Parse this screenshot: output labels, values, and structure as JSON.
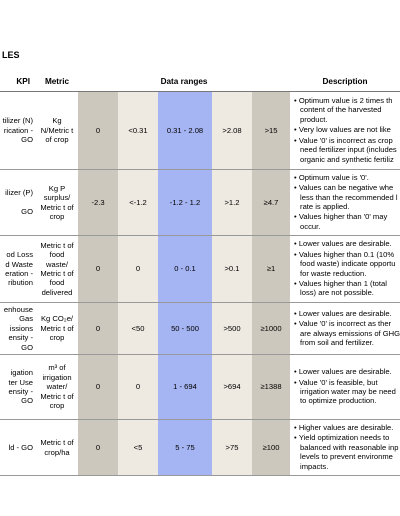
{
  "header": {
    "title": "LES"
  },
  "table": {
    "columns": {
      "kpi": "KPI",
      "metric": "Metric",
      "ranges": "Data ranges",
      "description": "Description"
    },
    "rows": [
      {
        "kpi": [
          "tilizer (N)",
          "rication -",
          "GO"
        ],
        "metric": "Kg N/Metric t of crop",
        "ranges": [
          "0",
          "<0.31",
          "0.31 - 2.08",
          ">2.08",
          ">15"
        ],
        "description": [
          [
            "Optimum value is 2 times th",
            "content of the harvested",
            "product."
          ],
          [
            "Very low values are not like"
          ],
          [
            "Value '0' is incorrect as crop",
            "need fertilizer input (includes",
            "organic and synthetic fertiliz"
          ]
        ]
      },
      {
        "kpi": [
          "ilizer (P)",
          "",
          "GO"
        ],
        "metric": "Kg P surplus/ Metric t of crop",
        "ranges": [
          "-2.3",
          "<-1.2",
          "-1.2 - 1.2",
          ">1.2",
          "≥4.7"
        ],
        "description": [
          [
            "Optimum value is '0'."
          ],
          [
            "Values can be negative whe",
            "less than the recommended l",
            "rate is applied."
          ],
          [
            "Values higher than '0' may",
            "occur."
          ]
        ]
      },
      {
        "kpi": [
          "od Loss",
          "d Waste",
          "eration -",
          "ribution"
        ],
        "metric": "Metric t of food waste/ Metric t of food delivered",
        "ranges": [
          "0",
          "0",
          "0 - 0.1",
          ">0.1",
          "≥1"
        ],
        "description": [
          [
            "Lower values are desirable."
          ],
          [
            "Values higher than 0.1 (10%",
            "food waste) indicate opportu",
            "for waste reduction."
          ],
          [
            "Values higher than 1 (total",
            "loss) are not possible."
          ]
        ]
      },
      {
        "kpi": [
          "enhouse",
          "Gas",
          "issions",
          "ensity -",
          "GO"
        ],
        "metric": "Kg CO₂e/ Metric t of crop",
        "ranges": [
          "0",
          "<50",
          "50 - 500",
          ">500",
          "≥1000"
        ],
        "description": [
          [
            "Lower values are desirable."
          ],
          [
            "Value '0' is incorrect as ther",
            "are always emissions of GHG",
            "from soil and fertilizer."
          ]
        ]
      },
      {
        "kpi": [
          "igation",
          "ter Use",
          "ensity -",
          "GO"
        ],
        "metric": "m³ of irrigation water/ Metric t of crop",
        "ranges": [
          "0",
          "0",
          "1 - 694",
          ">694",
          "≥1388"
        ],
        "description": [
          [
            "Lower values are desirable."
          ],
          [
            "Value '0' is feasible, but",
            "irrigation water may be need",
            "to optimize production."
          ]
        ]
      },
      {
        "kpi": [
          "ld - GO"
        ],
        "metric": "Metric t of crop/ha",
        "ranges": [
          "0",
          "<5",
          "5 - 75",
          ">75",
          "≥100"
        ],
        "description": [
          [
            "Higher values are desirable."
          ],
          [
            "Yield optimization needs to",
            "balanced with reasonable inp",
            "levels to prevent environme",
            "impacts."
          ]
        ]
      }
    ]
  }
}
